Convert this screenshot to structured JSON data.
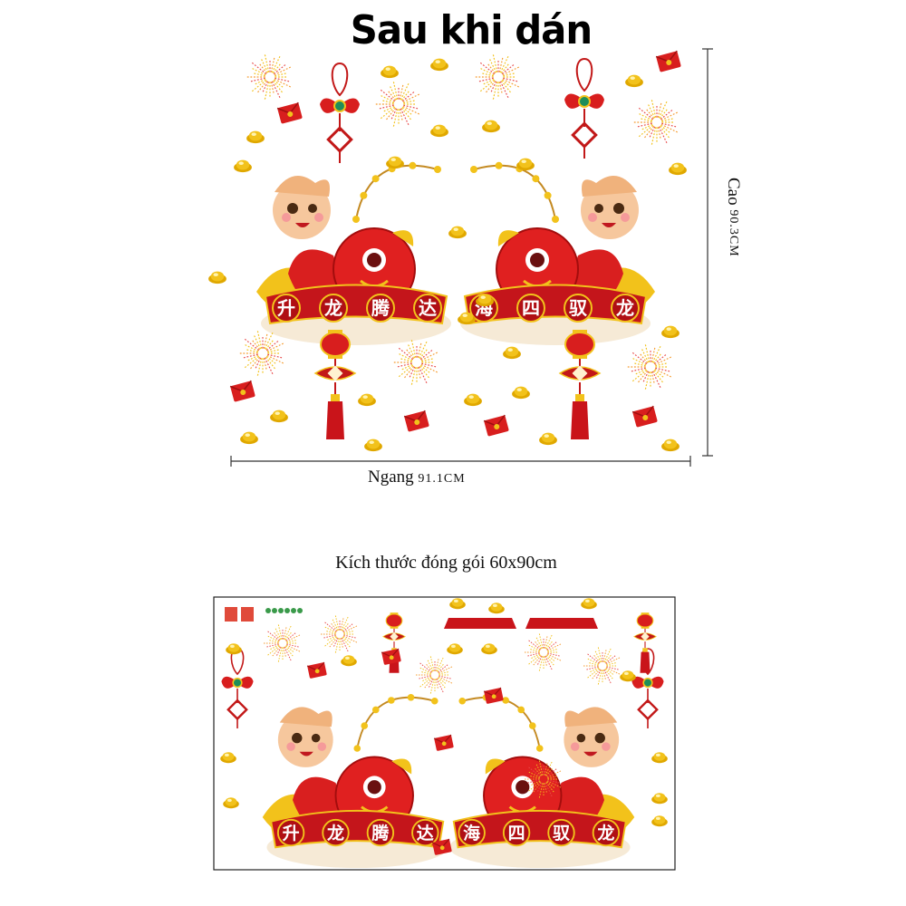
{
  "header": {
    "title": "Sau khi dán"
  },
  "dimensions": {
    "width_label": "Ngang",
    "width_value": "91.1CM",
    "height_label": "Cao",
    "height_value": "90.3CM"
  },
  "package": {
    "label": "Kích thước đóng gói 60x90cm"
  },
  "banners": {
    "left_chars": [
      "升",
      "龙",
      "腾",
      "达"
    ],
    "right_chars": [
      "龙",
      "驭",
      "四",
      "海"
    ]
  },
  "icons": {
    "dragon": "dragon-mascot-icon",
    "lantern": "red-lantern-icon",
    "knot": "chinese-knot-icon",
    "coin": "gold-ingot-icon",
    "envelope": "red-envelope-icon",
    "firework": "firework-icon"
  },
  "colors": {
    "primary_red": "#d81e1e",
    "gold": "#f2c21b",
    "skin": "#f6c79d"
  }
}
